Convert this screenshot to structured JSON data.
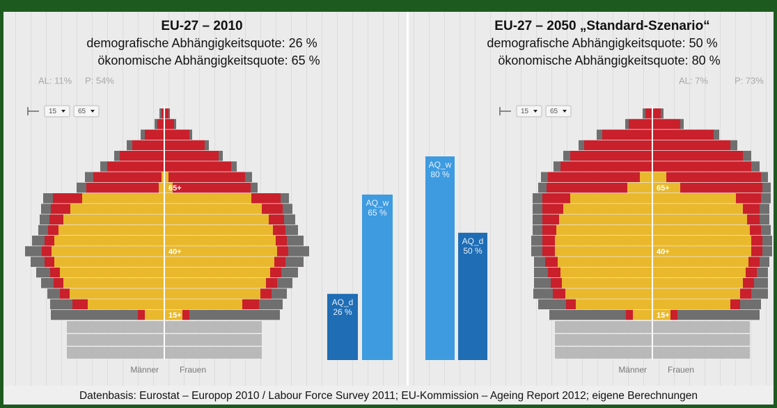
{
  "chart_data": [
    {
      "type": "pyramid",
      "title": "EU-27 – 2010",
      "subtitle": [
        "demografische Abhängigkeitsquote: 26 %",
        "ökonomische Abhängigkeitsquote: 65 %"
      ],
      "al": "AL: 11%",
      "p": "P: 54%",
      "controls": [
        "15",
        "65"
      ],
      "age_labels": [
        "65+",
        "40+",
        "15+"
      ],
      "sex_labels": [
        "Männer",
        "Frauen"
      ],
      "colors": {
        "yellow": "#e9b82c",
        "red": "#c9202b",
        "gray": "#6f6f6f",
        "light": "#b9b9b9"
      },
      "men": {
        "yellow": [
          0,
          0,
          0,
          0,
          0,
          0,
          4,
          8,
          118,
          135,
          145,
          152,
          158,
          162,
          158,
          150,
          145,
          136,
          110,
          28
        ],
        "red": [
          4,
          10,
          28,
          46,
          64,
          82,
          98,
          104,
          42,
          28,
          20,
          15,
          14,
          14,
          14,
          14,
          14,
          14,
          22,
          10
        ],
        "gray": [
          3,
          4,
          6,
          8,
          8,
          10,
          12,
          14,
          14,
          14,
          14,
          14,
          18,
          24,
          20,
          20,
          18,
          18,
          32,
          125
        ]
      },
      "women": {
        "yellow": [
          0,
          0,
          0,
          0,
          0,
          0,
          6,
          12,
          125,
          140,
          150,
          156,
          160,
          162,
          158,
          152,
          146,
          138,
          112,
          26
        ],
        "red": [
          6,
          14,
          36,
          58,
          78,
          96,
          110,
          112,
          42,
          30,
          22,
          18,
          16,
          16,
          16,
          16,
          16,
          16,
          24,
          10
        ],
        "gray": [
          2,
          3,
          4,
          6,
          6,
          8,
          10,
          10,
          12,
          14,
          16,
          18,
          24,
          30,
          26,
          24,
          22,
          22,
          34,
          130
        ]
      },
      "under15": {
        "men": [
          140,
          140,
          140
        ],
        "women": [
          140,
          140,
          140
        ]
      }
    },
    {
      "type": "bar",
      "categories": [
        "AQ_d",
        "AQ_w"
      ],
      "values": [
        26,
        65
      ],
      "value_labels": [
        "26 %",
        "65 %"
      ],
      "colors": [
        "#1f6db4",
        "#3e9be0"
      ],
      "ylim": [
        0,
        80
      ]
    },
    {
      "type": "bar",
      "categories": [
        "AQ_w",
        "AQ_d"
      ],
      "values": [
        80,
        50
      ],
      "value_labels": [
        "80 %",
        "50 %"
      ],
      "colors": [
        "#3e9be0",
        "#1f6db4"
      ],
      "ylim": [
        0,
        80
      ]
    },
    {
      "type": "pyramid",
      "title": "EU-27 – 2050 „Standard-Szenario“",
      "subtitle": [
        "demografische Abhängigkeitsquote: 50 %",
        "ökonomische Abhängigkeitsquote: 80 %"
      ],
      "al": "AL: 7%",
      "p": "P: 73%",
      "controls": [
        "15",
        "65"
      ],
      "age_labels": [
        "65+",
        "40+",
        "15+"
      ],
      "sex_labels": [
        "Männer",
        "Frauen"
      ],
      "colors": {
        "yellow": "#e9b82c",
        "red": "#c9202b",
        "gray": "#6f6f6f",
        "light": "#b9b9b9"
      },
      "men": {
        "yellow": [
          0,
          0,
          0,
          0,
          0,
          0,
          18,
          36,
          118,
          128,
          134,
          138,
          140,
          140,
          136,
          132,
          130,
          125,
          110,
          28
        ],
        "red": [
          10,
          34,
          72,
          98,
          118,
          132,
          132,
          116,
          40,
          30,
          24,
          20,
          18,
          18,
          18,
          18,
          16,
          18,
          14,
          10
        ],
        "gray": [
          4,
          5,
          8,
          8,
          10,
          10,
          10,
          12,
          14,
          14,
          14,
          14,
          16,
          16,
          16,
          20,
          24,
          28,
          40,
          110
        ]
      },
      "women": {
        "yellow": [
          0,
          0,
          0,
          0,
          0,
          0,
          20,
          40,
          120,
          130,
          136,
          140,
          142,
          142,
          138,
          134,
          130,
          126,
          112,
          26
        ],
        "red": [
          12,
          40,
          88,
          112,
          130,
          142,
          136,
          118,
          36,
          24,
          18,
          16,
          16,
          16,
          16,
          16,
          16,
          16,
          14,
          10
        ],
        "gray": [
          4,
          5,
          8,
          10,
          12,
          12,
          10,
          12,
          14,
          14,
          14,
          14,
          14,
          14,
          14,
          16,
          20,
          24,
          30,
          118
        ]
      },
      "under15": {
        "men": [
          140,
          140,
          140
        ],
        "women": [
          140,
          140,
          140
        ]
      }
    }
  ],
  "footer": "Datenbasis: Eurostat – Europop 2010 / Labour Force Survey 2011; EU-Kommission – Ageing Report 2012; eigene Berechnungen"
}
